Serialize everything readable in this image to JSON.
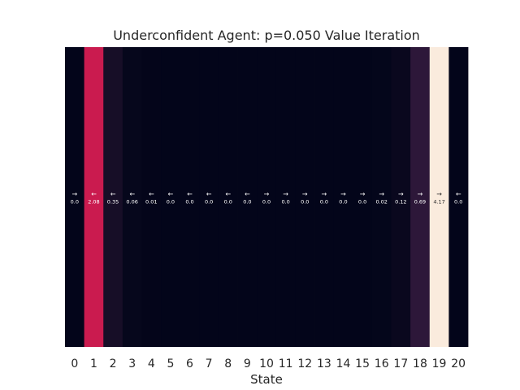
{
  "chart_data": {
    "type": "heatmap",
    "title": "Underconfident Agent: p=0.050 Value Iteration",
    "xlabel": "State",
    "ylabel": "",
    "categories": [
      "0",
      "1",
      "2",
      "3",
      "4",
      "5",
      "6",
      "7",
      "8",
      "9",
      "10",
      "11",
      "12",
      "13",
      "14",
      "15",
      "16",
      "17",
      "18",
      "19",
      "20"
    ],
    "values": [
      0.0,
      2.08,
      0.35,
      0.06,
      0.01,
      0.0,
      0.0,
      0.0,
      0.0,
      0.0,
      0.0,
      0.0,
      0.0,
      0.0,
      0.0,
      0.0,
      0.02,
      0.12,
      0.69,
      4.17,
      0.0
    ],
    "value_labels": [
      "0.0",
      "2.08",
      "0.35",
      "0.06",
      "0.01",
      "0.0",
      "0.0",
      "0.0",
      "0.0",
      "0.0",
      "0.0",
      "0.0",
      "0.0",
      "0.0",
      "0.0",
      "0.0",
      "0.02",
      "0.12",
      "0.69",
      "4.17",
      "0.0"
    ],
    "policy_arrows": [
      "→",
      "←",
      "←",
      "←",
      "←",
      "←",
      "←",
      "←",
      "←",
      "←",
      "→",
      "→",
      "→",
      "→",
      "→",
      "→",
      "→",
      "→",
      "→",
      "→",
      "←"
    ],
    "colormap": "rocket",
    "grid": false,
    "legend": "none"
  }
}
